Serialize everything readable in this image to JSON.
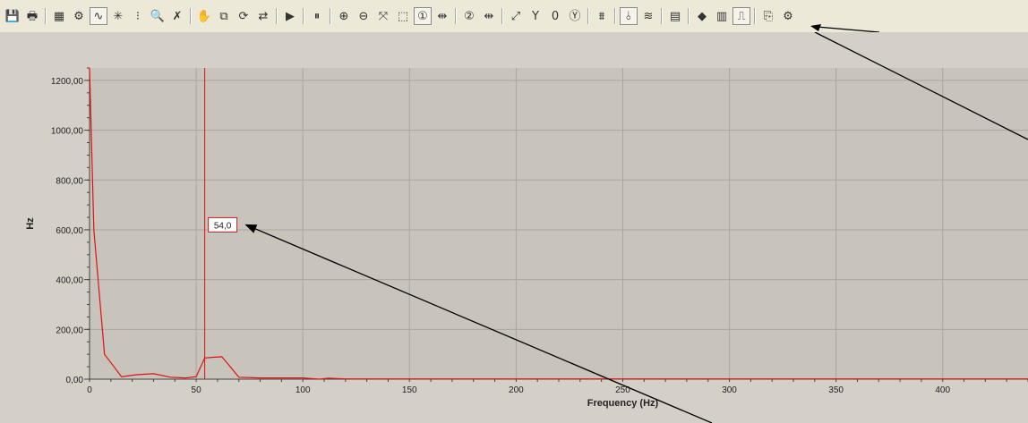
{
  "toolbar": {
    "buttons": [
      {
        "name": "save-icon",
        "glyph": "💾"
      },
      {
        "name": "print-icon",
        "glyph": "🖶"
      },
      {
        "name": "sep"
      },
      {
        "name": "calendar-icon",
        "glyph": "▦"
      },
      {
        "name": "gear-icon",
        "glyph": "⚙"
      },
      {
        "name": "curve-select-icon",
        "glyph": "∿",
        "pressed": true
      },
      {
        "name": "spark-icon",
        "glyph": "✳"
      },
      {
        "name": "points-icon",
        "glyph": "⁝"
      },
      {
        "name": "magnify-icon",
        "glyph": "🔍"
      },
      {
        "name": "marker-icon",
        "glyph": "✗"
      },
      {
        "name": "sep"
      },
      {
        "name": "hand-icon",
        "glyph": "✋"
      },
      {
        "name": "copy-icon",
        "glyph": "⧉"
      },
      {
        "name": "refresh-icon",
        "glyph": "⟳"
      },
      {
        "name": "export-icon",
        "glyph": "⇄"
      },
      {
        "name": "sep"
      },
      {
        "name": "play-icon",
        "glyph": "▶"
      },
      {
        "name": "sep"
      },
      {
        "name": "pause-icon",
        "glyph": "⏸"
      },
      {
        "name": "sep"
      },
      {
        "name": "zoom-in-icon",
        "glyph": "⊕"
      },
      {
        "name": "zoom-out-icon",
        "glyph": "⊖"
      },
      {
        "name": "zoom-fit-icon",
        "glyph": "⤧"
      },
      {
        "name": "zoom-box-icon",
        "glyph": "⬚"
      },
      {
        "name": "cursor-1-icon",
        "glyph": "①",
        "pressed": true
      },
      {
        "name": "cursor-spread-icon",
        "glyph": "⇹"
      },
      {
        "name": "sep"
      },
      {
        "name": "cursor-2-icon",
        "glyph": "②"
      },
      {
        "name": "cursor-delta-icon",
        "glyph": "⇹"
      },
      {
        "name": "sep"
      },
      {
        "name": "scale-icon",
        "glyph": "⤢"
      },
      {
        "name": "y-axis-icon",
        "glyph": "Y"
      },
      {
        "name": "offset-icon",
        "glyph": "0"
      },
      {
        "name": "y-circle-icon",
        "glyph": "Ⓨ"
      },
      {
        "name": "sep"
      },
      {
        "name": "spectrum-icon",
        "glyph": "⩩"
      },
      {
        "name": "sep"
      },
      {
        "name": "peak-icon",
        "glyph": "⫰",
        "pressed": true
      },
      {
        "name": "compare-icon",
        "glyph": "≋"
      },
      {
        "name": "sep"
      },
      {
        "name": "report-icon",
        "glyph": "▤"
      },
      {
        "name": "sep"
      },
      {
        "name": "dots-icon",
        "glyph": "◆"
      },
      {
        "name": "grid-icon",
        "glyph": "▥"
      },
      {
        "name": "step-icon",
        "glyph": "⎍",
        "pressed": true
      },
      {
        "name": "sep"
      },
      {
        "name": "properties-icon",
        "glyph": "⎘"
      },
      {
        "name": "settings-icon",
        "glyph": "⚙"
      }
    ]
  },
  "chart_data": {
    "type": "line",
    "xlabel": "Frequency (Hz)",
    "ylabel": "Hz",
    "xlim": [
      0,
      440
    ],
    "ylim": [
      0,
      1250
    ],
    "x_ticks": [
      0,
      50,
      100,
      150,
      200,
      250,
      300,
      350,
      400
    ],
    "x_tick_labels": [
      "0",
      "50",
      "100",
      "150",
      "200",
      "250",
      "300",
      "350",
      "400"
    ],
    "y_ticks": [
      0,
      200,
      400,
      600,
      800,
      1000,
      1200
    ],
    "y_tick_labels": [
      "0,00",
      "200,00",
      "400,00",
      "600,00",
      "800,00",
      "1000,00",
      "1200,00"
    ],
    "grid": true,
    "line_color": "#e01010",
    "series": [
      {
        "x": [
          0,
          2,
          7,
          15,
          22,
          30,
          38,
          45,
          50,
          54,
          58,
          62,
          65,
          70,
          80,
          90,
          100,
          104,
          108,
          112,
          120,
          150,
          200,
          250,
          300,
          350,
          400,
          440
        ],
        "y": [
          1250,
          600,
          100,
          10,
          18,
          22,
          8,
          5,
          10,
          85,
          88,
          90,
          60,
          8,
          5,
          5,
          5,
          2,
          0,
          4,
          1,
          1,
          1,
          1,
          1,
          1,
          1,
          1
        ]
      }
    ],
    "cursor": {
      "x": 54,
      "label": "54,0",
      "label_y": 620
    }
  }
}
